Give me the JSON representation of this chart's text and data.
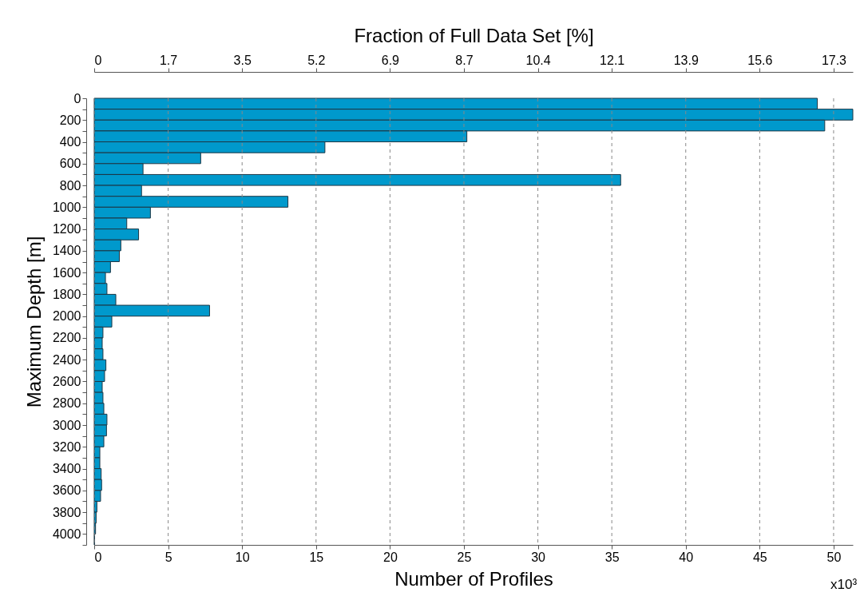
{
  "chart_data": {
    "type": "histogram",
    "orientation": "horizontal",
    "xlabel": "Number of Profiles",
    "ylabel": "Maximum Depth [m]",
    "x2label": "Fraction of Full Data Set [%]",
    "color": "#0099cc",
    "bins": [
      0,
      100,
      200,
      300,
      400,
      500,
      600,
      700,
      800,
      900,
      1000,
      1100,
      1200,
      1300,
      1400,
      1500,
      1600,
      1700,
      1800,
      1900,
      2000,
      2100,
      2200,
      2300,
      2400,
      2500,
      2600,
      2700,
      2800,
      2900,
      3000,
      3100,
      3200,
      3300,
      3400,
      3500,
      3600,
      3700,
      3800,
      3900,
      4000,
      4100
    ],
    "values": [
      48.9,
      51.3,
      49.4,
      25.2,
      15.6,
      7.2,
      3.3,
      35.6,
      3.2,
      13.1,
      3.8,
      2.2,
      3.0,
      1.8,
      1.7,
      1.1,
      0.76,
      0.86,
      1.46,
      7.8,
      1.19,
      0.59,
      0.54,
      0.59,
      0.79,
      0.7,
      0.54,
      0.59,
      0.65,
      0.86,
      0.83,
      0.65,
      0.38,
      0.38,
      0.47,
      0.5,
      0.43,
      0.18,
      0.13,
      0.09,
      0.02
    ],
    "xlim": [
      0,
      51.3
    ],
    "xticks": [
      0,
      5,
      10,
      15,
      20,
      25,
      30,
      35,
      40,
      45,
      50
    ],
    "x2lim": [
      0,
      17.77
    ],
    "x2ticks": [
      0,
      {
        "value": 1.732,
        "label": "1.7"
      },
      {
        "value": 3.464,
        "label": "3.5"
      },
      {
        "value": 5.196,
        "label": "5.2"
      },
      {
        "value": 6.928,
        "label": "6.9"
      },
      {
        "value": 8.66,
        "label": "8.7"
      },
      {
        "value": 10.392,
        "label": "10.4"
      },
      {
        "value": 12.124,
        "label": "12.1"
      },
      {
        "value": 13.856,
        "label": "13.9"
      },
      {
        "value": 15.588,
        "label": "15.6"
      },
      {
        "value": 17.32,
        "label": "17.3"
      }
    ],
    "ylim": [
      4100,
      0
    ],
    "yticks": [
      0,
      {
        "value": 100,
        "label": null
      },
      200,
      {
        "value": 300,
        "label": null
      },
      400,
      {
        "value": 500,
        "label": null
      },
      600,
      {
        "value": 700,
        "label": null
      },
      800,
      {
        "value": 900,
        "label": null
      },
      1000,
      {
        "value": 1100,
        "label": null
      },
      1200,
      {
        "value": 1300,
        "label": null
      },
      1400,
      {
        "value": 1500,
        "label": null
      },
      1600,
      {
        "value": 1700,
        "label": null
      },
      1800,
      {
        "value": 1900,
        "label": null
      },
      2000,
      {
        "value": 2100,
        "label": null
      },
      2200,
      {
        "value": 2300,
        "label": null
      },
      2400,
      {
        "value": 2500,
        "label": null
      },
      2600,
      {
        "value": 2700,
        "label": null
      },
      2800,
      {
        "value": 2900,
        "label": null
      },
      3000,
      {
        "value": 3100,
        "label": null
      },
      3200,
      {
        "value": 3300,
        "label": null
      },
      3400,
      {
        "value": 3500,
        "label": null
      },
      3600,
      {
        "value": 3700,
        "label": null
      },
      3800,
      {
        "value": 3900,
        "label": null
      },
      4000,
      {
        "value": 4100,
        "label": null
      }
    ],
    "grid": "x",
    "annotations": [
      "x10³"
    ]
  }
}
